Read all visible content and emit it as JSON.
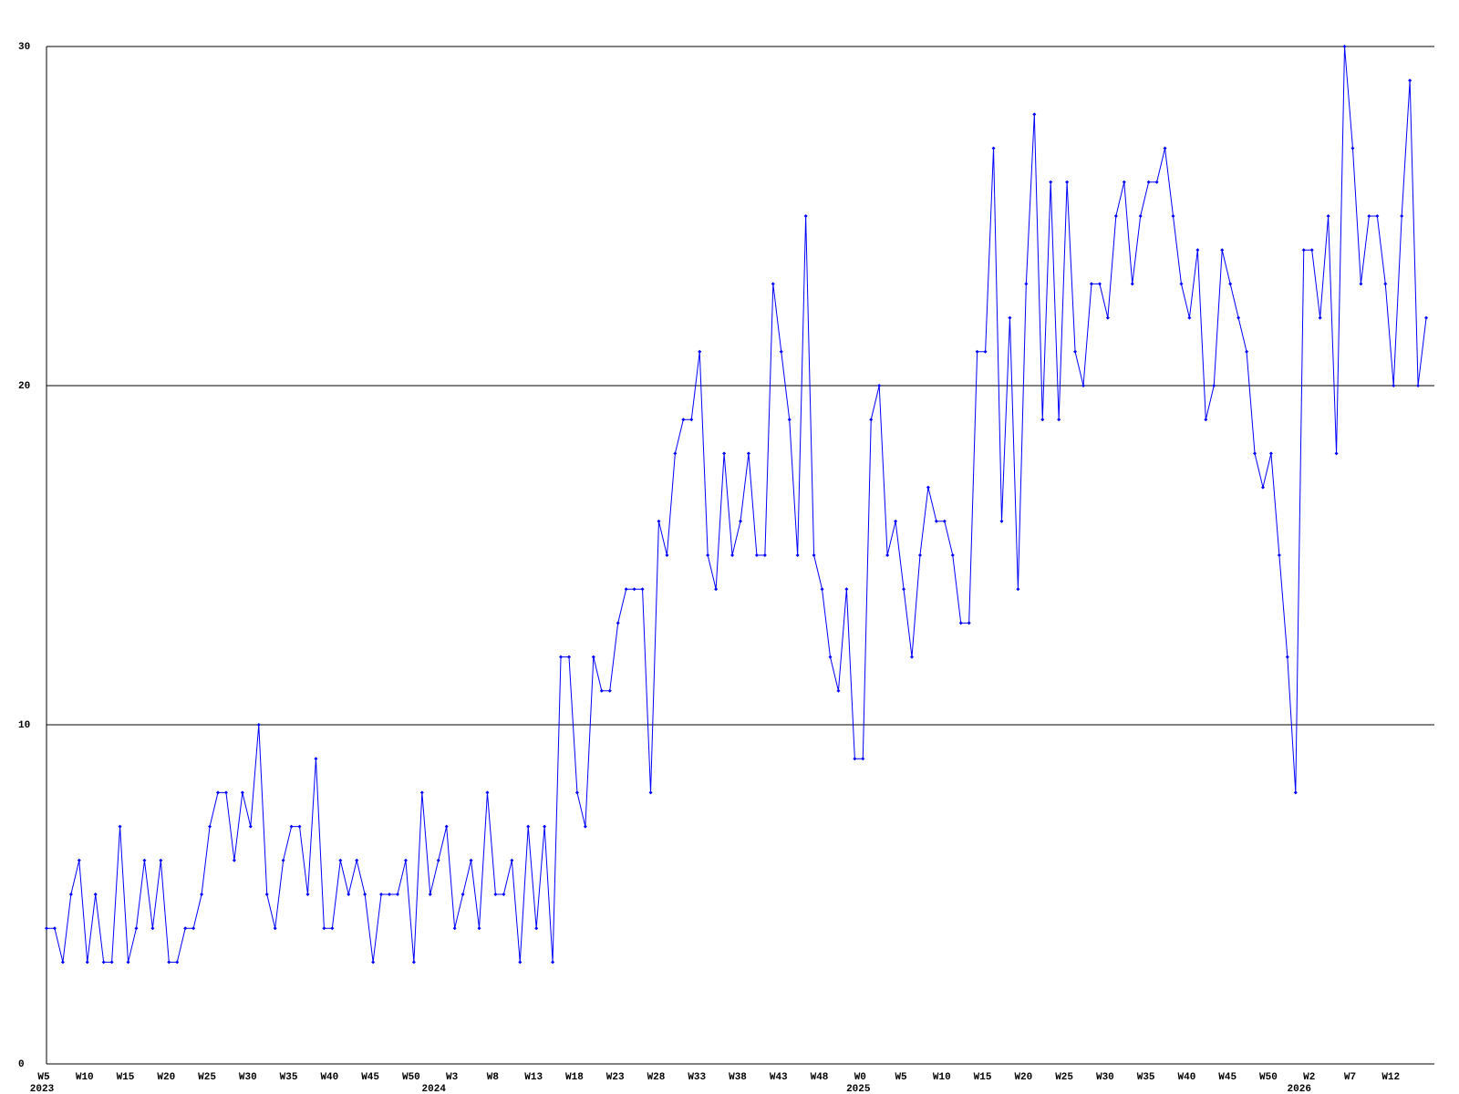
{
  "chart_data": {
    "type": "line",
    "categories": [
      "W5",
      null,
      null,
      null,
      null,
      "W10",
      null,
      null,
      null,
      null,
      "W15",
      null,
      null,
      null,
      null,
      "W20",
      null,
      null,
      null,
      null,
      "W25",
      null,
      null,
      null,
      null,
      "W30",
      null,
      null,
      null,
      null,
      "W35",
      null,
      null,
      null,
      null,
      "W40",
      null,
      null,
      null,
      null,
      "W45",
      null,
      null,
      null,
      null,
      "W50",
      null,
      null,
      null,
      null,
      "W3",
      null,
      null,
      null,
      null,
      "W8",
      null,
      null,
      null,
      null,
      "W13",
      null,
      null,
      null,
      null,
      "W18",
      null,
      null,
      null,
      null,
      "W23",
      null,
      null,
      null,
      null,
      "W28",
      null,
      null,
      null,
      null,
      "W33",
      null,
      null,
      null,
      null,
      "W38",
      null,
      null,
      null,
      null,
      "W43",
      null,
      null,
      null,
      null,
      "W48",
      null,
      null,
      null,
      null,
      "W0",
      null,
      null,
      null,
      null,
      "W5",
      null,
      null,
      null,
      null,
      "W10",
      null,
      null,
      null,
      null,
      "W15",
      null,
      null,
      null,
      null,
      "W20",
      null,
      null,
      null,
      null,
      "W25",
      null,
      null,
      null,
      null,
      "W30",
      null,
      null,
      null,
      null,
      "W35",
      null,
      null,
      null,
      null,
      "W40",
      null,
      null,
      null,
      null,
      "W45",
      null,
      null,
      null,
      null,
      "W50",
      null,
      null,
      null,
      null,
      "W2",
      null,
      null,
      null,
      null,
      "W7",
      null,
      null,
      null,
      null,
      "W12",
      null,
      null,
      null,
      null
    ],
    "years": [
      "2023",
      null,
      null,
      null,
      null,
      null,
      null,
      null,
      null,
      null,
      null,
      null,
      null,
      null,
      null,
      null,
      null,
      null,
      null,
      null,
      null,
      null,
      null,
      null,
      null,
      null,
      null,
      null,
      null,
      null,
      null,
      null,
      null,
      null,
      null,
      null,
      null,
      null,
      null,
      null,
      null,
      null,
      null,
      null,
      null,
      null,
      null,
      null,
      "2024",
      null,
      null,
      null,
      null,
      null,
      null,
      null,
      null,
      null,
      null,
      null,
      null,
      null,
      null,
      null,
      null,
      null,
      null,
      null,
      null,
      null,
      null,
      null,
      null,
      null,
      null,
      null,
      null,
      null,
      null,
      null,
      null,
      null,
      null,
      null,
      null,
      null,
      null,
      null,
      null,
      null,
      null,
      null,
      null,
      null,
      null,
      null,
      null,
      null,
      null,
      null,
      "2025",
      null,
      null,
      null,
      null,
      null,
      null,
      null,
      null,
      null,
      null,
      null,
      null,
      null,
      null,
      null,
      null,
      null,
      null,
      null,
      null,
      null,
      null,
      null,
      null,
      null,
      null,
      null,
      null,
      null,
      null,
      null,
      null,
      null,
      null,
      null,
      null,
      null,
      null,
      null,
      null,
      null,
      null,
      null,
      null,
      null,
      null,
      null,
      null,
      null,
      null,
      null,
      null,
      null,
      "2026",
      null,
      null,
      null,
      null,
      null,
      null,
      null,
      null,
      null,
      null,
      null,
      null,
      null,
      null,
      null
    ],
    "series": [
      {
        "color": "#0000ff",
        "values": [
          4,
          4,
          3,
          5,
          6,
          3,
          5,
          3,
          3,
          7,
          3,
          4,
          6,
          4,
          6,
          3,
          3,
          4,
          4,
          5,
          7,
          8,
          8,
          6,
          8,
          7,
          10,
          5,
          4,
          6,
          7,
          7,
          5,
          9,
          4,
          4,
          6,
          5,
          6,
          5,
          3,
          5,
          5,
          5,
          6,
          3,
          8,
          5,
          6,
          7,
          4,
          5,
          6,
          4,
          8,
          5,
          5,
          6,
          3,
          7,
          4,
          7,
          3,
          12,
          12,
          8,
          7,
          12,
          11,
          11,
          13,
          14,
          14,
          14,
          8,
          16,
          15,
          18,
          19,
          19,
          21,
          15,
          14,
          18,
          15,
          16,
          18,
          15,
          15,
          23,
          21,
          19,
          15,
          25,
          15,
          14,
          12,
          11,
          14,
          9,
          9,
          19,
          20,
          15,
          16,
          14,
          12,
          15,
          17,
          16,
          16,
          15,
          13,
          13,
          21,
          21,
          27,
          16,
          22,
          14,
          23,
          28,
          19,
          26,
          19,
          26,
          21,
          20,
          23,
          23,
          22,
          25,
          26,
          23,
          25,
          26,
          26,
          27,
          25,
          23,
          22,
          24,
          19,
          20,
          24,
          23,
          22,
          21,
          18,
          17,
          18,
          15,
          12,
          8,
          24,
          24,
          22,
          25,
          18,
          30,
          27,
          23,
          25,
          25,
          23,
          20,
          25,
          29,
          20,
          22
        ]
      }
    ],
    "ylim": [
      0,
      30
    ],
    "yticks": [
      0,
      10,
      20,
      30
    ],
    "grid": true
  }
}
